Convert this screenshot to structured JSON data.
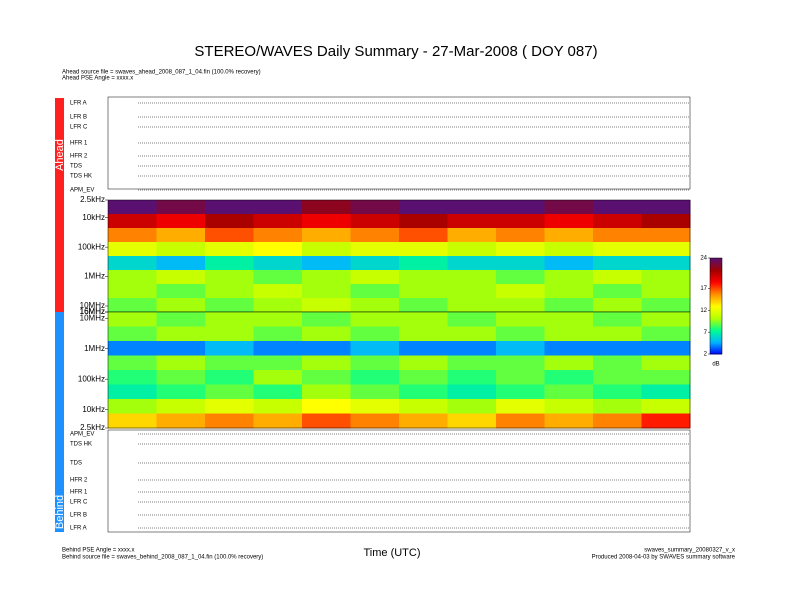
{
  "title": "STEREO/WAVES Daily Summary - 27-Mar-2008 ( DOY 087)",
  "header_lines": [
    "Ahead source file = swaves_ahead_2008_087_1_04.fin (100.0% recovery)",
    "Ahead PSE Angle = xxxx.x"
  ],
  "footer_left": [
    "Behind PSE Angle = xxxx.x",
    "Behind source file = swaves_behind_2008_087_1_04.fin (100.0% recovery)"
  ],
  "footer_right": [
    "swaves_summary_20080327_v_x",
    "Produced 2008-04-03 by SWAVES summary software"
  ],
  "chart_data": {
    "type": "heatmap",
    "xlabel": "Time (UTC)",
    "zlim": [
      2,
      24
    ],
    "zticks": [
      2,
      7,
      12,
      17,
      24
    ],
    "zlabel": "dB",
    "colormap": [
      "#0000ff",
      "#00b4ff",
      "#00ff90",
      "#b4ff00",
      "#ffff00",
      "#ff9000",
      "#ff0000",
      "#a00000",
      "#5a1070"
    ],
    "ylim": [
      2500,
      16000000
    ],
    "log_y": true,
    "yticks": [
      {
        "value": 2500,
        "label": "2.5kHz"
      },
      {
        "value": 10000,
        "label": "10kHz"
      },
      {
        "value": 100000,
        "label": "100kHz"
      },
      {
        "value": 1000000,
        "label": "1MHz"
      },
      {
        "value": 10000000,
        "label": "10MHz"
      },
      {
        "value": 16000000,
        "label": "16MHz"
      }
    ],
    "series": [
      {
        "name": "Ahead",
        "color": "#ff2020",
        "y_reversed": true,
        "instruments": [
          "LFR A",
          "LFR B",
          "LFR C",
          "HFR 1",
          "HFR 2",
          "TDS",
          "TDS HK",
          "APM_EV"
        ],
        "values": [
          [
            24,
            23,
            24,
            24,
            22,
            23,
            24,
            24,
            24,
            23,
            24,
            24
          ],
          [
            20,
            19,
            21,
            20,
            19,
            20,
            21,
            20,
            20,
            19,
            20,
            21
          ],
          [
            16,
            15,
            17,
            16,
            15,
            16,
            17,
            15,
            16,
            15,
            16,
            16
          ],
          [
            12,
            11,
            12,
            13,
            11,
            12,
            12,
            11,
            12,
            11,
            12,
            12
          ],
          [
            6,
            5,
            7,
            6,
            5,
            6,
            7,
            6,
            6,
            5,
            6,
            6
          ],
          [
            10,
            11,
            10,
            9,
            10,
            11,
            10,
            10,
            9,
            10,
            11,
            10
          ],
          [
            10,
            9,
            10,
            11,
            10,
            9,
            10,
            10,
            11,
            10,
            9,
            10
          ],
          [
            9,
            10,
            9,
            10,
            11,
            10,
            9,
            10,
            10,
            9,
            10,
            9
          ]
        ]
      },
      {
        "name": "Behind",
        "color": "#1e90ff",
        "y_reversed": false,
        "instruments": [
          "APM_EV",
          "TDS HK",
          "TDS",
          "HFR 2",
          "HFR 1",
          "LFR C",
          "LFR B",
          "LFR A"
        ],
        "values": [
          [
            10,
            9,
            10,
            10,
            9,
            10,
            10,
            9,
            10,
            10,
            9,
            10
          ],
          [
            9,
            10,
            10,
            9,
            10,
            9,
            10,
            10,
            9,
            10,
            10,
            9
          ],
          [
            4,
            4,
            5,
            4,
            4,
            5,
            4,
            4,
            5,
            4,
            4,
            4
          ],
          [
            9,
            10,
            9,
            9,
            10,
            9,
            10,
            9,
            9,
            10,
            9,
            10
          ],
          [
            8,
            9,
            8,
            10,
            9,
            8,
            9,
            8,
            9,
            8,
            9,
            9
          ],
          [
            7,
            8,
            9,
            8,
            10,
            9,
            8,
            7,
            8,
            9,
            8,
            7
          ],
          [
            10,
            11,
            12,
            11,
            13,
            12,
            11,
            10,
            12,
            11,
            10,
            11
          ],
          [
            14,
            15,
            16,
            15,
            17,
            16,
            15,
            14,
            16,
            15,
            16,
            18
          ]
        ]
      }
    ]
  }
}
